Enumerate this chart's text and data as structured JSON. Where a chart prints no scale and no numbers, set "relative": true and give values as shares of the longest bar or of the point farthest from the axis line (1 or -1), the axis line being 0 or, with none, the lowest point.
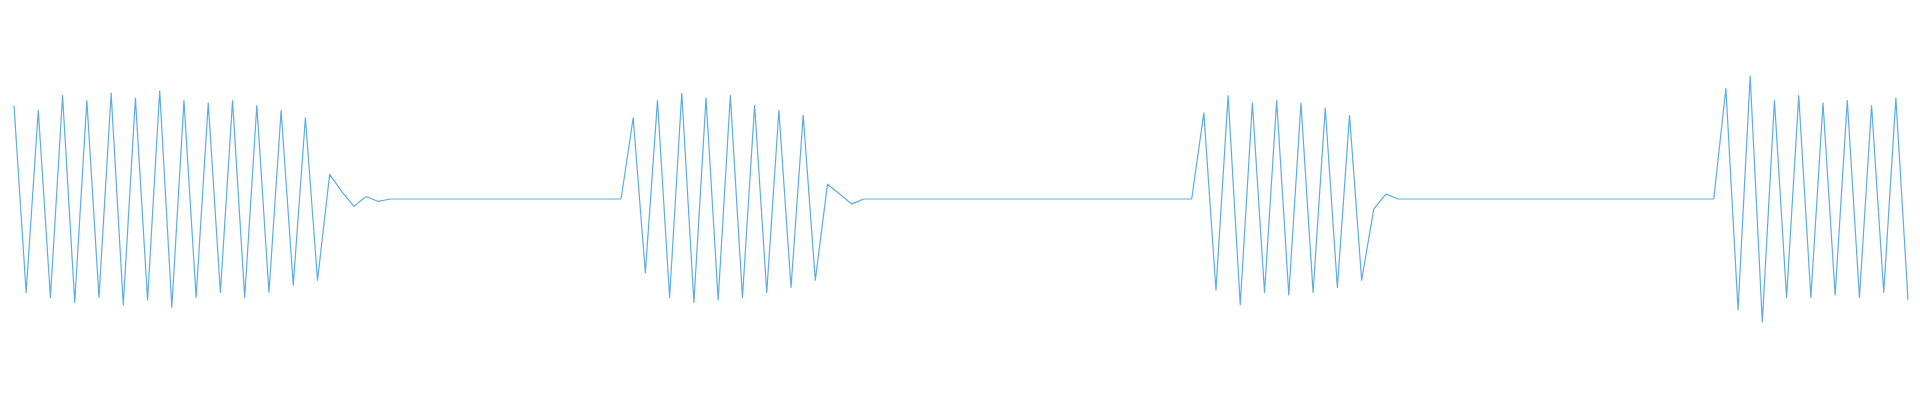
{
  "chart_data": {
    "type": "line",
    "relative": true,
    "categories": [
      null,
      null,
      null,
      null,
      null,
      null,
      null,
      null,
      null,
      null,
      null,
      null,
      null,
      null,
      null,
      null,
      null,
      null,
      null,
      null,
      null,
      null,
      null,
      null,
      null,
      null,
      null,
      null,
      null,
      null,
      null,
      null,
      null,
      null,
      null,
      null,
      null,
      null,
      null,
      null,
      null,
      null,
      null,
      null,
      null,
      null,
      null,
      null,
      null,
      null,
      null,
      null,
      null,
      null,
      null,
      null,
      null,
      null,
      null,
      null,
      null,
      null,
      null,
      null,
      null,
      null,
      null,
      null,
      null,
      null,
      null,
      null,
      null,
      null,
      null,
      null,
      null,
      null,
      null,
      null,
      null,
      null,
      null,
      null,
      null,
      null,
      null,
      null,
      null,
      null,
      null,
      null,
      null,
      null,
      null,
      null,
      null,
      null,
      null,
      null,
      null,
      null,
      null,
      null,
      null,
      null,
      null,
      null,
      null,
      null,
      null,
      null,
      null,
      null,
      null,
      null,
      null,
      null,
      null,
      null,
      null,
      null,
      null,
      null,
      null,
      null,
      null,
      null,
      null,
      null,
      null,
      null,
      null,
      null,
      null,
      null,
      null,
      null,
      null,
      null,
      null,
      null,
      null,
      null,
      null,
      null,
      null,
      null,
      null,
      null,
      null,
      null,
      null,
      null,
      null,
      null,
      null
    ],
    "series": [
      {
        "color": "#5dade2",
        "values": [
          0.88,
          0.12,
          0.86,
          0.1,
          0.92,
          0.08,
          0.9,
          0.1,
          0.93,
          0.07,
          0.91,
          0.09,
          0.94,
          0.06,
          0.9,
          0.1,
          0.89,
          0.12,
          0.9,
          0.1,
          0.88,
          0.12,
          0.86,
          0.15,
          0.83,
          0.17,
          0.6,
          0.53,
          0.47,
          0.51,
          0.49,
          0.5,
          0.5,
          0.5,
          0.5,
          0.5,
          0.5,
          0.5,
          0.5,
          0.5,
          0.5,
          0.5,
          0.5,
          0.5,
          0.5,
          0.5,
          0.5,
          0.5,
          0.5,
          0.5,
          0.5,
          0.83,
          0.2,
          0.9,
          0.1,
          0.93,
          0.08,
          0.91,
          0.09,
          0.92,
          0.1,
          0.88,
          0.12,
          0.86,
          0.14,
          0.84,
          0.17,
          0.56,
          0.52,
          0.48,
          0.5,
          0.5,
          0.5,
          0.5,
          0.5,
          0.5,
          0.5,
          0.5,
          0.5,
          0.5,
          0.5,
          0.5,
          0.5,
          0.5,
          0.5,
          0.5,
          0.5,
          0.5,
          0.5,
          0.5,
          0.5,
          0.5,
          0.5,
          0.5,
          0.5,
          0.5,
          0.5,
          0.5,
          0.85,
          0.13,
          0.92,
          0.07,
          0.89,
          0.12,
          0.9,
          0.11,
          0.89,
          0.12,
          0.87,
          0.14,
          0.84,
          0.17,
          0.46,
          0.52,
          0.5,
          0.5,
          0.5,
          0.5,
          0.5,
          0.5,
          0.5,
          0.5,
          0.5,
          0.5,
          0.5,
          0.5,
          0.5,
          0.5,
          0.5,
          0.5,
          0.5,
          0.5,
          0.5,
          0.5,
          0.5,
          0.5,
          0.5,
          0.5,
          0.5,
          0.5,
          0.5,
          0.95,
          0.05,
          1,
          0,
          0.9,
          0.1,
          0.92,
          0.1,
          0.89,
          0.11,
          0.9,
          0.1,
          0.88,
          0.12,
          0.91,
          0.09
        ]
      }
    ]
  }
}
